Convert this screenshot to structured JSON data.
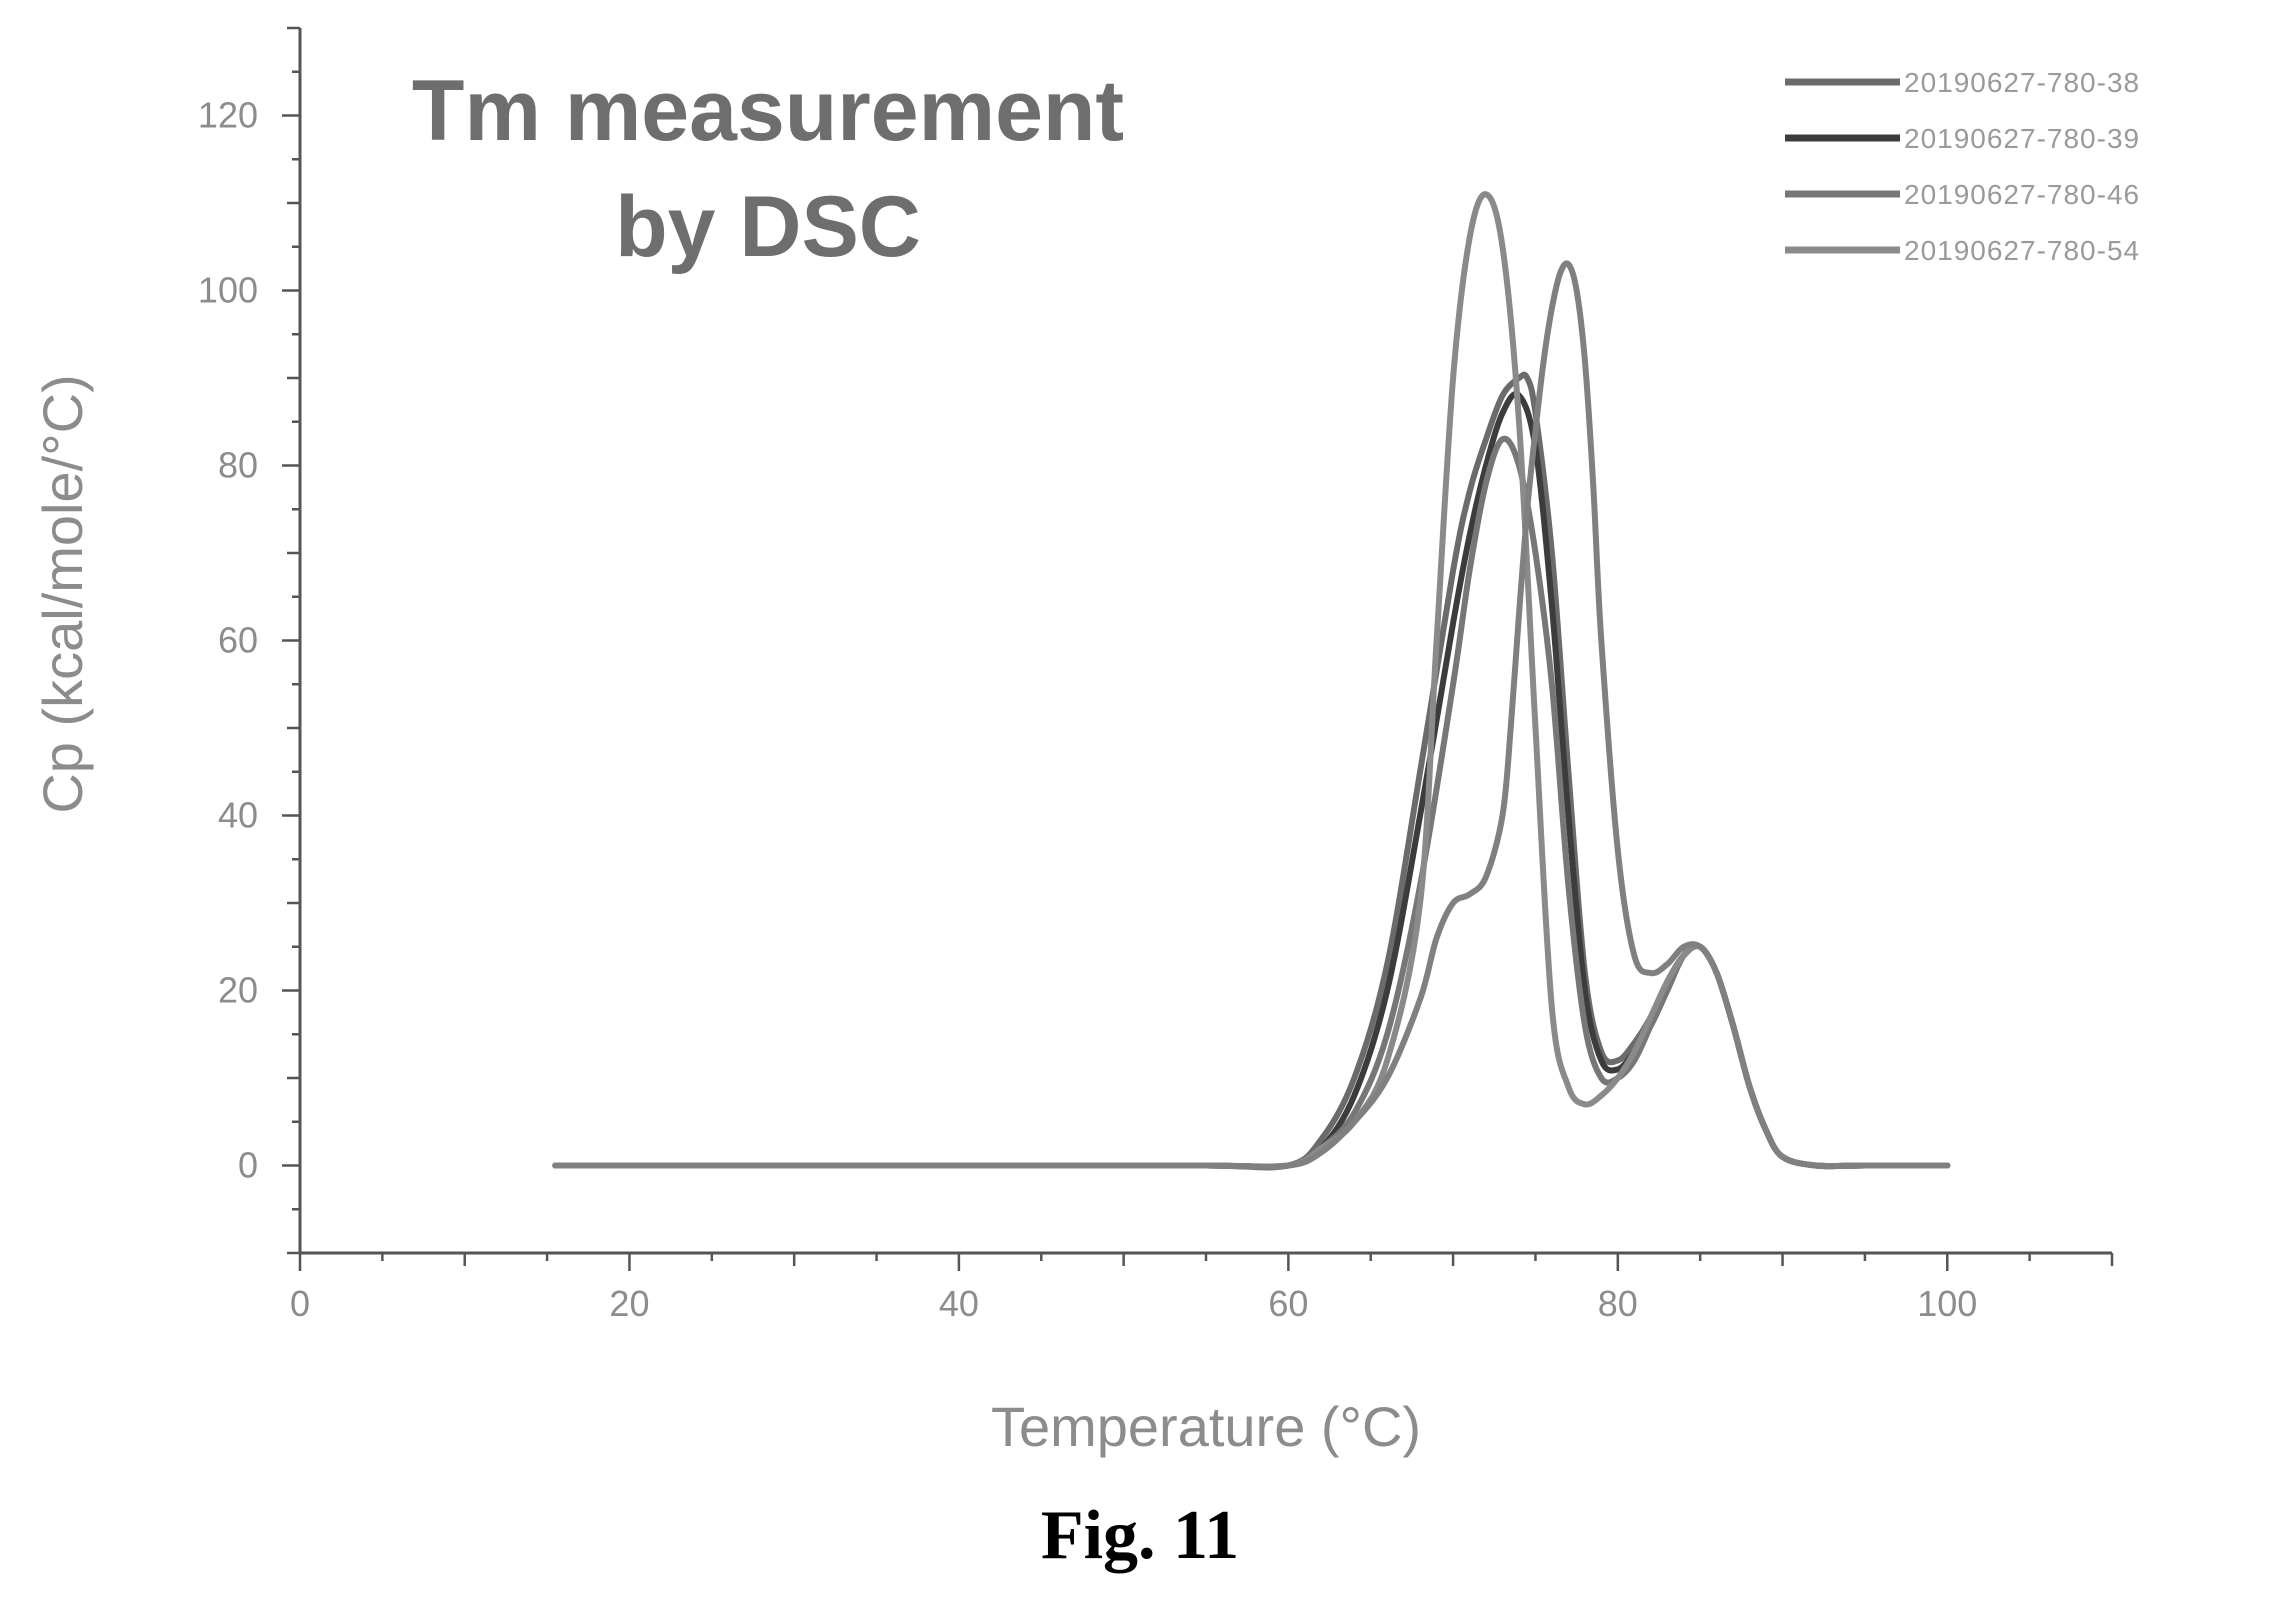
{
  "chart_data": {
    "type": "line",
    "title_line1": "Tm measurement",
    "title_line2": "by DSC",
    "xlabel": "Temperature (°C)",
    "ylabel": "Cp (kcal/mole/°C)",
    "xlim": [
      0,
      110
    ],
    "ylim": [
      -10,
      130
    ],
    "xticks": [
      0,
      20,
      40,
      60,
      80,
      100
    ],
    "yticks": [
      0,
      20,
      40,
      60,
      80,
      100,
      120
    ],
    "legend_position": "top-right",
    "colors": {
      "axis": "#555555",
      "text": "#8c8c8c"
    },
    "series": [
      {
        "name": "20190627-780-38",
        "color": "#6b6b6b",
        "x": [
          15.5,
          30,
          45,
          55,
          60,
          62,
          64,
          66,
          68,
          70,
          71,
          72,
          73,
          74,
          74.5,
          75,
          76,
          77,
          78,
          79,
          80,
          81,
          82,
          83,
          84,
          85,
          86,
          87,
          88,
          89,
          90,
          92,
          95,
          100
        ],
        "y": [
          0,
          0,
          0,
          0,
          0,
          3,
          10,
          23,
          45,
          68,
          77,
          83,
          88,
          90,
          90,
          86,
          70,
          45,
          22,
          13,
          12,
          14,
          17,
          21,
          24,
          25,
          22,
          16,
          9,
          4,
          1,
          0,
          0,
          0
        ]
      },
      {
        "name": "20190627-780-39",
        "color": "#3c3c3c",
        "x": [
          15.5,
          30,
          45,
          55,
          60,
          62,
          64,
          66,
          68,
          70,
          71,
          72,
          73,
          74,
          75,
          76,
          77,
          78,
          79,
          80,
          81,
          82,
          83,
          84,
          85,
          86,
          87,
          88,
          89,
          90,
          92,
          95,
          100
        ],
        "y": [
          0,
          0,
          0,
          0,
          0,
          2,
          8,
          20,
          40,
          62,
          72,
          80,
          86,
          88,
          82,
          64,
          40,
          20,
          12,
          11,
          13,
          16,
          20,
          24,
          25,
          22,
          16,
          9,
          4,
          1,
          0,
          0,
          0
        ]
      },
      {
        "name": "20190627-780-46",
        "color": "#777777",
        "x": [
          15.5,
          30,
          45,
          55,
          60,
          62,
          64,
          66,
          68,
          70,
          71,
          72,
          73,
          74,
          75,
          76,
          77,
          78,
          79,
          80,
          81,
          82,
          83,
          84,
          85,
          86,
          87,
          88,
          89,
          90,
          92,
          95,
          100
        ],
        "y": [
          0,
          0,
          0,
          0,
          0,
          2,
          6,
          15,
          32,
          55,
          68,
          78,
          83,
          80,
          70,
          55,
          32,
          16,
          10,
          10,
          12,
          16,
          20,
          24,
          25,
          22,
          16,
          9,
          4,
          1,
          0,
          0,
          0
        ]
      },
      {
        "name": "20190627-780-54",
        "color": "#8a8a8a",
        "x": [
          15.5,
          30,
          45,
          55,
          60,
          62,
          64,
          66,
          68,
          69,
          70,
          71,
          72,
          73,
          74,
          75,
          76,
          77,
          78,
          79,
          80,
          81,
          82,
          83,
          84,
          85,
          86,
          87,
          88,
          89,
          90,
          92,
          95,
          100
        ],
        "y": [
          0,
          0,
          0,
          0,
          0,
          2,
          5,
          12,
          30,
          60,
          90,
          106,
          111,
          105,
          85,
          50,
          18,
          9,
          7,
          8,
          10,
          13,
          17,
          21,
          24,
          25,
          22,
          16,
          9,
          4,
          1,
          0,
          0,
          0
        ]
      },
      {
        "name": "",
        "color": "#808080",
        "x": [
          15.5,
          30,
          45,
          55,
          60,
          62,
          64,
          66,
          68,
          69,
          70,
          71,
          72,
          73,
          73.5,
          74,
          74.5,
          75,
          75.5,
          76,
          76.5,
          77,
          77.5,
          78,
          78.5,
          79,
          80,
          81,
          82,
          83,
          84,
          85,
          86,
          87,
          88,
          89,
          90,
          92,
          95,
          100
        ],
        "y": [
          0,
          0,
          0,
          0,
          0,
          1.5,
          5,
          10,
          19,
          26,
          30,
          31,
          33,
          40,
          50,
          63,
          75,
          84,
          92,
          98,
          102,
          103,
          100,
          92,
          78,
          60,
          36,
          24,
          22,
          23,
          25,
          25,
          22,
          16,
          9,
          4,
          1,
          0,
          0,
          0
        ]
      }
    ]
  },
  "caption": "Fig. 11"
}
